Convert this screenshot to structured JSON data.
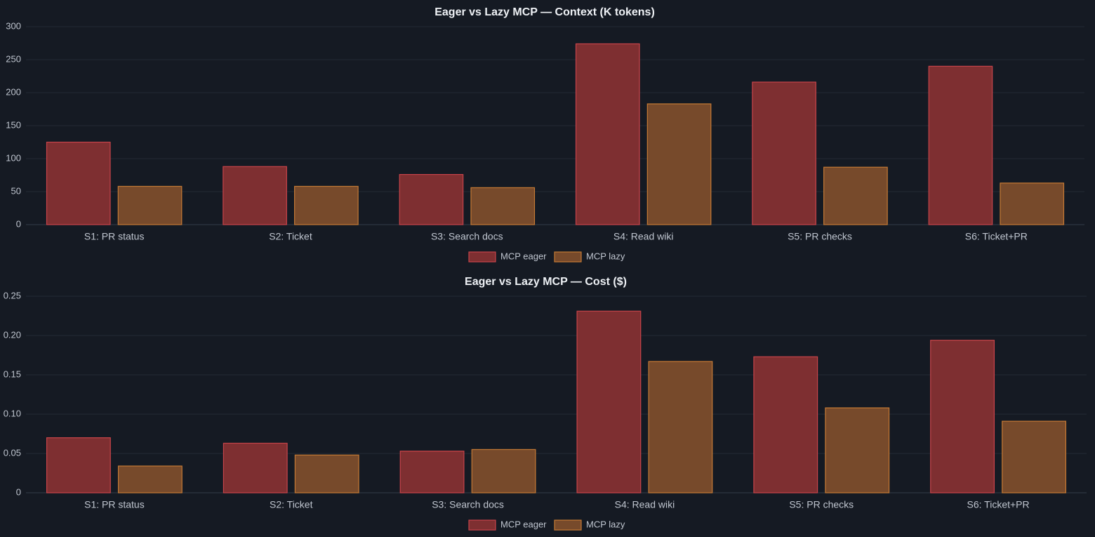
{
  "colors": {
    "background": "#151a23",
    "grid": "#222a36",
    "axis": "#343c48",
    "tick_text": "#bfc5cf",
    "title_text": "#eef1f5",
    "eager_fill": "#7e2f31",
    "eager_stroke": "#c7444a",
    "lazy_fill": "#774a2b",
    "lazy_stroke": "#c57a35"
  },
  "chart_data": [
    {
      "type": "bar",
      "title": "Eager vs Lazy MCP — Context (K tokens)",
      "categories": [
        "S1: PR status",
        "S2: Ticket",
        "S3: Search docs",
        "S4: Read wiki",
        "S5: PR checks",
        "S6: Ticket+PR"
      ],
      "series": [
        {
          "name": "MCP eager",
          "values": [
            125,
            88,
            76,
            274,
            216,
            240
          ]
        },
        {
          "name": "MCP lazy",
          "values": [
            58,
            58,
            56,
            183,
            87,
            63
          ]
        }
      ],
      "ylim": [
        0,
        300
      ],
      "yticks": [
        0,
        50,
        100,
        150,
        200,
        250,
        300
      ],
      "ytick_labels": [
        "0",
        "50",
        "100",
        "150",
        "200",
        "250",
        "300"
      ],
      "legend_position": "bottom",
      "grid": true
    },
    {
      "type": "bar",
      "title": "Eager vs Lazy MCP — Cost ($)",
      "categories": [
        "S1: PR status",
        "S2: Ticket",
        "S3: Search docs",
        "S4: Read wiki",
        "S5: PR checks",
        "S6: Ticket+PR"
      ],
      "series": [
        {
          "name": "MCP eager",
          "values": [
            0.07,
            0.063,
            0.053,
            0.231,
            0.173,
            0.194
          ]
        },
        {
          "name": "MCP lazy",
          "values": [
            0.034,
            0.048,
            0.055,
            0.167,
            0.108,
            0.091
          ]
        }
      ],
      "ylim": [
        0,
        0.25
      ],
      "yticks": [
        0,
        0.05,
        0.1,
        0.15,
        0.2,
        0.25
      ],
      "ytick_labels": [
        "0",
        "0.05",
        "0.10",
        "0.15",
        "0.20",
        "0.25"
      ],
      "legend_position": "bottom",
      "grid": true
    }
  ]
}
